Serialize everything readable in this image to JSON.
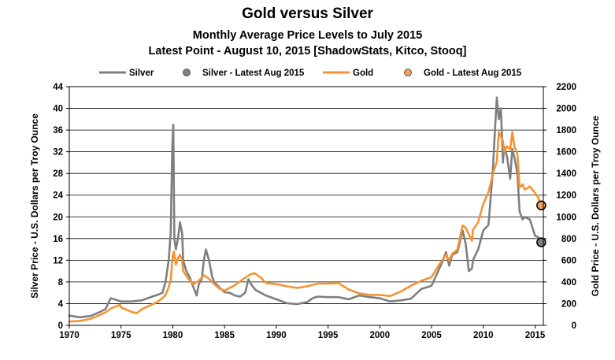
{
  "chart_data": {
    "type": "line",
    "title": "Gold versus Silver",
    "subtitle_1": "Monthly Average Price Levels to July 2015",
    "subtitle_2": "Latest Point - August 10, 2015 [ShadowStats, Kitco, Stooq]",
    "xlabel": "",
    "ylabel_left": "Silver  Price - U.S. Dollars per Troy Ounce",
    "ylabel_right": "Gold Price - U.S. Dollars per Troy Ounce",
    "xlim": [
      1970,
      2015.8
    ],
    "ylim_left": [
      0,
      44
    ],
    "ylim_right": [
      0,
      2200
    ],
    "x_ticks": [
      1970,
      1975,
      1980,
      1985,
      1990,
      1995,
      2000,
      2005,
      2010,
      2015
    ],
    "x_tick_labels": [
      "1970",
      "1975",
      "1980",
      "1985",
      "1990",
      "1995",
      "2000",
      "2005",
      "2010",
      "2015"
    ],
    "y_ticks_left": [
      0,
      4,
      8,
      12,
      16,
      20,
      24,
      28,
      32,
      36,
      40,
      44
    ],
    "y_tick_labels_left": [
      "0",
      "4",
      "8",
      "12",
      "16",
      "20",
      "24",
      "28",
      "32",
      "36",
      "40",
      "44"
    ],
    "y_ticks_right": [
      0,
      200,
      400,
      600,
      800,
      1000,
      1200,
      1400,
      1600,
      1800,
      2000,
      2200
    ],
    "y_tick_labels_right": [
      "0",
      "200",
      "400",
      "600",
      "800",
      "1000",
      "1200",
      "1400",
      "1600",
      "1800",
      "2000",
      "2200"
    ],
    "grid": true,
    "legend_position": "top",
    "legend": [
      "Silver",
      "Silver - Latest Aug 2015",
      "Gold",
      "Gold - Latest Aug 2015"
    ],
    "series": [
      {
        "name": "Silver",
        "axis": "left",
        "color": "#7f7f7f",
        "x": [
          1970.0,
          1971.0,
          1972.0,
          1973.0,
          1973.5,
          1974.0,
          1974.5,
          1975.0,
          1976.0,
          1977.0,
          1978.0,
          1978.5,
          1979.0,
          1979.3,
          1979.6,
          1979.8,
          1979.95,
          1980.05,
          1980.15,
          1980.3,
          1980.5,
          1980.7,
          1980.9,
          1981.0,
          1981.3,
          1981.6,
          1982.0,
          1982.3,
          1982.5,
          1982.8,
          1983.0,
          1983.2,
          1983.5,
          1983.8,
          1984.0,
          1984.5,
          1985.0,
          1985.5,
          1986.0,
          1986.5,
          1987.0,
          1987.3,
          1987.6,
          1988.0,
          1989.0,
          1990.0,
          1991.0,
          1992.0,
          1993.0,
          1993.5,
          1994.0,
          1995.0,
          1996.0,
          1997.0,
          1998.0,
          1999.0,
          2000.0,
          2001.0,
          2002.0,
          2003.0,
          2004.0,
          2005.0,
          2006.0,
          2006.4,
          2006.7,
          2007.0,
          2007.5,
          2008.0,
          2008.3,
          2008.6,
          2008.9,
          2009.0,
          2009.5,
          2010.0,
          2010.5,
          2010.9,
          2011.1,
          2011.3,
          2011.5,
          2011.7,
          2011.9,
          2012.0,
          2012.3,
          2012.6,
          2012.8,
          2013.0,
          2013.3,
          2013.5,
          2013.8,
          2014.0,
          2014.5,
          2015.0,
          2015.3,
          2015.55
        ],
        "values": [
          1.8,
          1.5,
          1.7,
          2.5,
          3.0,
          5.0,
          4.7,
          4.4,
          4.4,
          4.6,
          5.3,
          5.6,
          6.0,
          8.0,
          12.0,
          17.0,
          33.0,
          37.0,
          16.0,
          14.0,
          16.0,
          19.0,
          17.0,
          12.0,
          10.0,
          9.0,
          7.0,
          5.5,
          7.5,
          8.5,
          12.0,
          14.0,
          12.0,
          9.0,
          8.0,
          7.0,
          6.1,
          6.0,
          5.5,
          5.3,
          6.0,
          8.5,
          7.5,
          6.5,
          5.5,
          4.8,
          4.1,
          3.9,
          4.3,
          5.0,
          5.3,
          5.2,
          5.2,
          4.8,
          5.5,
          5.2,
          5.0,
          4.4,
          4.6,
          4.9,
          6.7,
          7.3,
          11.5,
          13.5,
          11.0,
          13.0,
          13.5,
          17.5,
          15.0,
          10.0,
          10.5,
          12.0,
          14.0,
          17.5,
          18.5,
          28.0,
          35.0,
          42.0,
          38.0,
          40.0,
          30.0,
          33.0,
          31.0,
          27.0,
          32.5,
          31.0,
          28.0,
          21.0,
          19.5,
          20.0,
          19.5,
          16.5,
          16.3,
          15.0
        ]
      },
      {
        "name": "Silver - Latest Aug 2015",
        "axis": "left",
        "color": "#7f7f7f",
        "x": [
          2015.6
        ],
        "values": [
          15.3
        ]
      },
      {
        "name": "Gold",
        "axis": "right",
        "color": "#f39433",
        "x": [
          1970.0,
          1971.0,
          1972.0,
          1973.0,
          1973.5,
          1974.0,
          1974.9,
          1975.0,
          1976.0,
          1976.5,
          1977.0,
          1978.0,
          1978.5,
          1979.0,
          1979.3,
          1979.6,
          1979.8,
          1980.0,
          1980.1,
          1980.3,
          1980.5,
          1980.7,
          1980.9,
          1981.0,
          1981.5,
          1982.0,
          1982.5,
          1983.0,
          1983.5,
          1984.0,
          1984.5,
          1985.0,
          1986.0,
          1987.0,
          1987.5,
          1987.9,
          1988.5,
          1989.0,
          1990.0,
          1991.0,
          1992.0,
          1993.0,
          1994.0,
          1995.0,
          1996.0,
          1997.0,
          1998.0,
          1999.0,
          2000.0,
          2001.0,
          2002.0,
          2003.0,
          2004.0,
          2005.0,
          2006.0,
          2006.4,
          2006.7,
          2007.0,
          2007.5,
          2008.0,
          2008.3,
          2008.9,
          2009.0,
          2009.5,
          2010.0,
          2010.5,
          2010.9,
          2011.0,
          2011.3,
          2011.5,
          2011.7,
          2011.9,
          2012.0,
          2012.3,
          2012.6,
          2012.8,
          2013.0,
          2013.3,
          2013.5,
          2013.8,
          2014.0,
          2014.5,
          2015.0,
          2015.3,
          2015.55
        ],
        "values": [
          35,
          41,
          58,
          97,
          120,
          155,
          190,
          165,
          125,
          112,
          148,
          193,
          215,
          250,
          280,
          350,
          420,
          640,
          680,
          560,
          620,
          650,
          590,
          500,
          430,
          380,
          410,
          460,
          430,
          380,
          340,
          320,
          370,
          440,
          470,
          480,
          440,
          390,
          380,
          360,
          345,
          360,
          385,
          385,
          390,
          330,
          295,
          280,
          280,
          270,
          310,
          365,
          410,
          445,
          600,
          650,
          600,
          660,
          700,
          920,
          900,
          780,
          880,
          950,
          1120,
          1230,
          1380,
          1420,
          1510,
          1780,
          1740,
          1700,
          1600,
          1650,
          1620,
          1780,
          1650,
          1580,
          1270,
          1300,
          1250,
          1280,
          1220,
          1180,
          1110
        ]
      },
      {
        "name": "Gold - Latest Aug 2015",
        "axis": "right",
        "color": "#f39433",
        "x": [
          2015.6
        ],
        "values": [
          1105
        ]
      }
    ]
  },
  "colors": {
    "silver": "#7f7f7f",
    "gold": "#f39433",
    "silver_marker": "#808080",
    "gold_marker": "#f0a060"
  }
}
